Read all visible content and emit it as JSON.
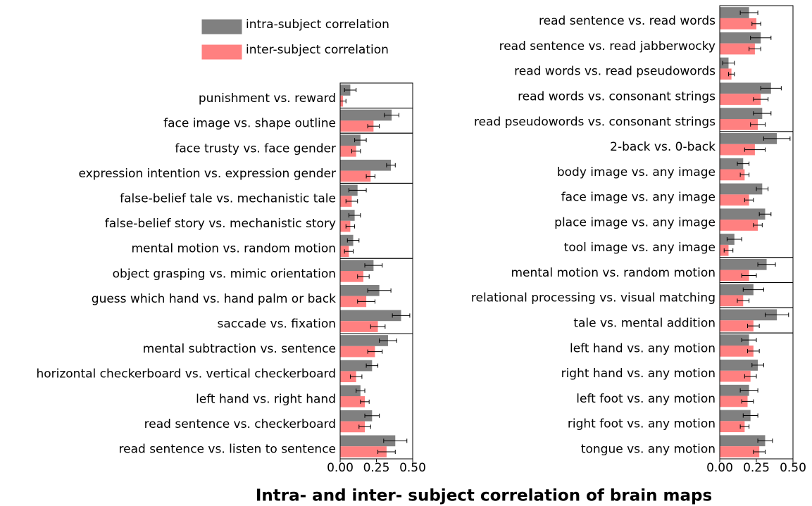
{
  "title": "Intra- and inter- subject correlation of brain maps",
  "chart_data": [
    {
      "type": "hbar",
      "categories": [
        "punishment vs. reward",
        "face image vs. shape outline",
        "face trusty vs. face gender",
        "expression intention vs. expression gender",
        "false-belief tale vs. mechanistic tale",
        "false-belief story vs. mechanistic story",
        "mental motion vs. random motion",
        "object grasping vs. mimic orientation",
        "guess which hand vs. hand palm or back",
        "saccade vs. fixation",
        "mental subtraction vs. sentence",
        "horizontal checkerboard vs. vertical checkerboard",
        "left hand vs. right hand",
        "read sentence vs. checkerboard",
        "read sentence vs. listen to sentence"
      ],
      "panels": [
        1,
        1,
        2,
        3,
        3,
        5
      ],
      "series": [
        {
          "name": "intra-subject correlation",
          "color": "#808080",
          "values": [
            0.07,
            0.355,
            0.14,
            0.35,
            0.12,
            0.1,
            0.09,
            0.23,
            0.27,
            0.42,
            0.33,
            0.22,
            0.14,
            0.22,
            0.38
          ],
          "errors": [
            0.04,
            0.05,
            0.04,
            0.03,
            0.06,
            0.04,
            0.04,
            0.06,
            0.08,
            0.06,
            0.06,
            0.04,
            0.03,
            0.05,
            0.08
          ]
        },
        {
          "name": "inter-subject correlation",
          "color": "#ff8080",
          "values": [
            0.02,
            0.23,
            0.11,
            0.21,
            0.08,
            0.07,
            0.06,
            0.16,
            0.18,
            0.26,
            0.24,
            0.11,
            0.17,
            0.17,
            0.32
          ],
          "errors": [
            0.02,
            0.04,
            0.03,
            0.03,
            0.04,
            0.03,
            0.03,
            0.04,
            0.06,
            0.05,
            0.05,
            0.04,
            0.03,
            0.04,
            0.06
          ]
        }
      ],
      "xlim": [
        0,
        0.5
      ],
      "xticks": [
        {
          "value": 0,
          "label": "0.00"
        },
        0.25,
        {
          "value": 0.5,
          "label": "0.50"
        }
      ],
      "legend": "upper left"
    },
    {
      "type": "hbar",
      "categories": [
        "read sentence vs. read words",
        "read sentence vs. read jabberwocky",
        "read words vs. read pseudowords",
        "read words vs. consonant strings",
        "read pseudowords vs. consonant strings",
        "2-back vs. 0-back",
        "body image vs. any image",
        "face image vs. any image",
        "place image vs. any image",
        "tool image vs. any image",
        "mental motion vs. random motion",
        "relational processing vs. visual matching",
        "tale vs. mental addition",
        "left hand vs. any motion",
        "right hand vs. any motion",
        "left foot vs. any motion",
        "right foot vs. any motion",
        "tongue vs. any motion"
      ],
      "panels": [
        5,
        5,
        1,
        1,
        1,
        5
      ],
      "series": [
        {
          "color": "#808080",
          "values": [
            0.2,
            0.28,
            0.06,
            0.35,
            0.29,
            0.39,
            0.16,
            0.29,
            0.31,
            0.1,
            0.32,
            0.23,
            0.39,
            0.2,
            0.26,
            0.2,
            0.21,
            0.31
          ],
          "errors": [
            0.06,
            0.07,
            0.04,
            0.07,
            0.06,
            0.09,
            0.04,
            0.04,
            0.04,
            0.05,
            0.06,
            0.07,
            0.08,
            0.05,
            0.04,
            0.06,
            0.05,
            0.05
          ]
        },
        {
          "color": "#ff8080",
          "values": [
            0.25,
            0.24,
            0.08,
            0.28,
            0.26,
            0.24,
            0.17,
            0.2,
            0.26,
            0.06,
            0.2,
            0.16,
            0.23,
            0.23,
            0.21,
            0.19,
            0.17,
            0.27
          ],
          "errors": [
            0.03,
            0.04,
            0.02,
            0.05,
            0.05,
            0.07,
            0.03,
            0.03,
            0.03,
            0.03,
            0.05,
            0.04,
            0.04,
            0.04,
            0.04,
            0.04,
            0.03,
            0.04
          ]
        }
      ],
      "xlim": [
        0,
        0.5
      ],
      "xticks": [
        {
          "value": 0,
          "label": "0.00"
        },
        0.25,
        {
          "value": 0.5,
          "label": "0.50"
        }
      ]
    }
  ]
}
